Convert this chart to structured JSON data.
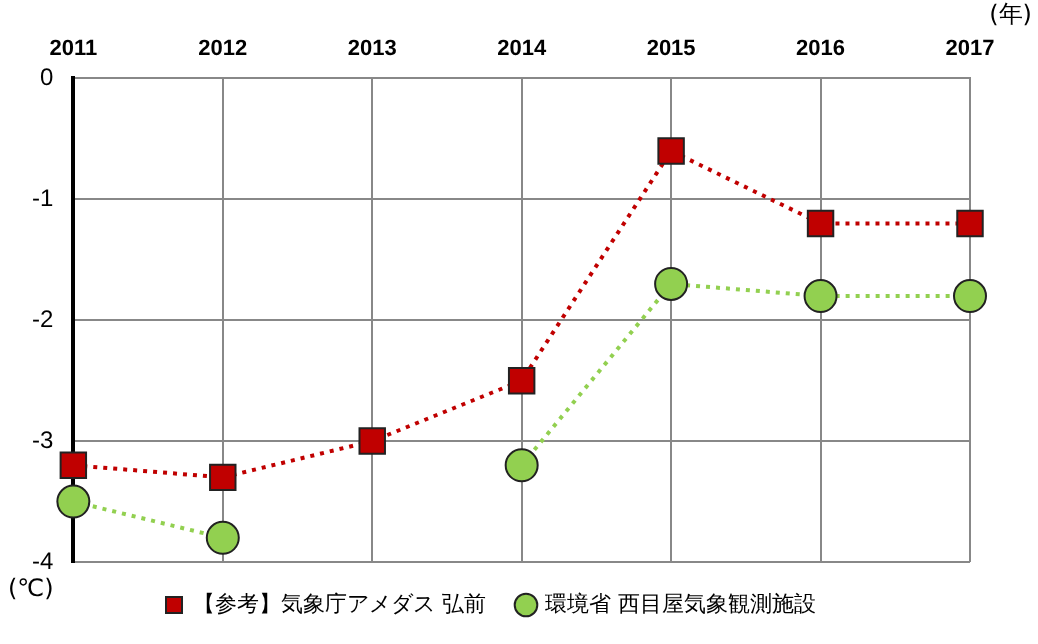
{
  "chart_data": {
    "type": "line",
    "xlabel": "(年)",
    "ylabel": "(℃)",
    "categories": [
      "2011",
      "2012",
      "2013",
      "2014",
      "2015",
      "2016",
      "2017"
    ],
    "series": [
      {
        "name": "環境省 西目屋気象観測施設",
        "color": "#92d050",
        "marker": "circle",
        "values": [
          -3.5,
          -3.8,
          null,
          -3.2,
          -1.7,
          -1.8,
          -1.8
        ]
      },
      {
        "name": "【参考】気象庁アメダス 弘前",
        "color": "#c00000",
        "marker": "square",
        "values": [
          -3.2,
          -3.3,
          -3.0,
          -2.5,
          -0.6,
          -1.2,
          -1.2
        ]
      }
    ],
    "ylim": [
      -4,
      0
    ],
    "yticks": [
      0,
      -1,
      -2,
      -3,
      -4
    ],
    "grid": true,
    "legend": "bottom",
    "line_style": "dotted"
  }
}
